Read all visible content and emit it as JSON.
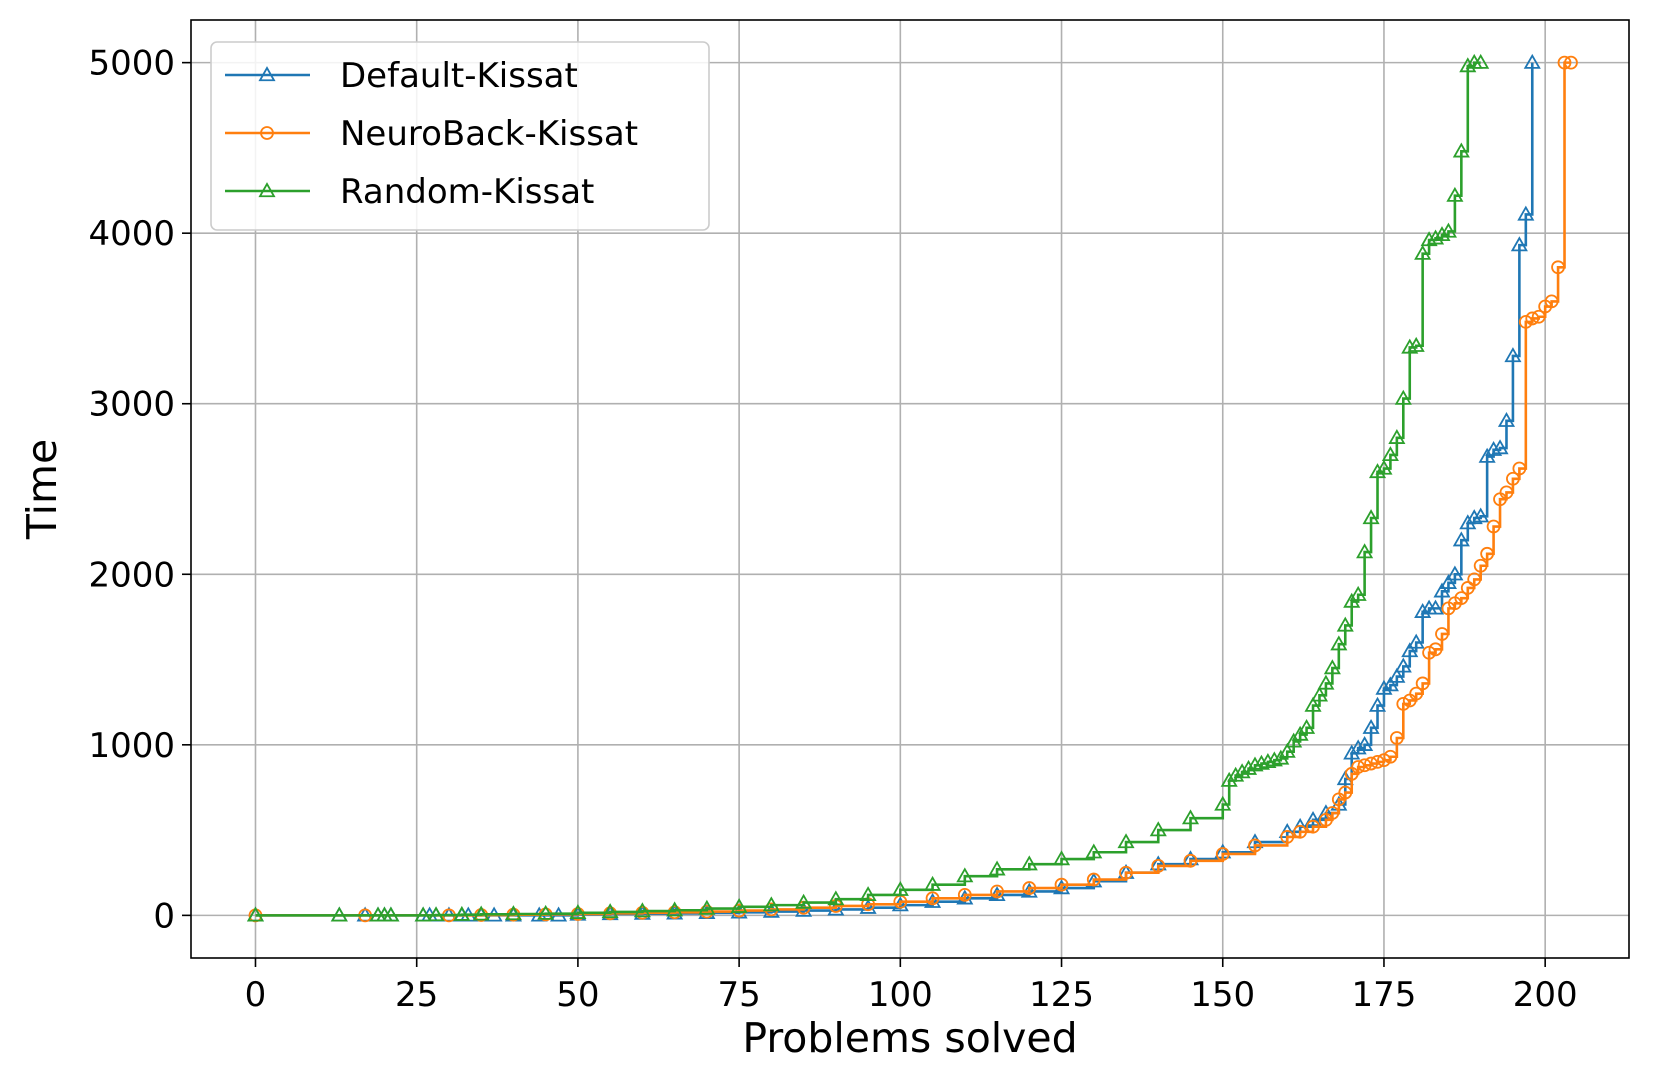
{
  "chart_data": {
    "type": "line",
    "xlabel": "Problems solved",
    "ylabel": "Time",
    "xlim": [
      -10,
      213
    ],
    "ylim": [
      -250,
      5250
    ],
    "xticks": [
      0,
      25,
      50,
      75,
      100,
      125,
      150,
      175,
      200
    ],
    "yticks": [
      0,
      1000,
      2000,
      3000,
      4000,
      5000
    ],
    "grid": true,
    "legend_position": "top-left",
    "series": [
      {
        "name": "Default-Kissat",
        "color": "#1f77b4",
        "marker": "triangle",
        "x": [
          0,
          13,
          17,
          19,
          20,
          21,
          26,
          27,
          28,
          30,
          32,
          33,
          35,
          37,
          40,
          44,
          47,
          50,
          55,
          60,
          65,
          70,
          75,
          80,
          85,
          90,
          95,
          100,
          105,
          110,
          115,
          120,
          125,
          130,
          135,
          140,
          145,
          150,
          155,
          160,
          162,
          164,
          166,
          168,
          169,
          170,
          171,
          172,
          173,
          174,
          175,
          176,
          177,
          178,
          179,
          180,
          181,
          182,
          183,
          184,
          185,
          186,
          187,
          188,
          189,
          190,
          191,
          192,
          193,
          194,
          195,
          196,
          197,
          198
        ],
        "y": [
          0,
          0,
          0,
          0,
          0,
          0,
          0,
          0,
          0,
          0,
          0,
          0,
          0,
          0,
          0,
          0,
          0,
          5,
          8,
          10,
          12,
          15,
          18,
          22,
          28,
          35,
          45,
          60,
          80,
          100,
          120,
          140,
          160,
          200,
          250,
          300,
          330,
          370,
          430,
          490,
          520,
          560,
          600,
          650,
          800,
          950,
          980,
          1000,
          1100,
          1230,
          1330,
          1350,
          1400,
          1460,
          1550,
          1600,
          1780,
          1800,
          1800,
          1900,
          1950,
          2000,
          2200,
          2300,
          2330,
          2340,
          2690,
          2730,
          2740,
          2900,
          3280,
          3930,
          4110,
          5000
        ]
      },
      {
        "name": "NeuroBack-Kissat",
        "color": "#ff7f0e",
        "marker": "circle",
        "x": [
          0,
          17,
          30,
          35,
          40,
          45,
          50,
          55,
          60,
          65,
          70,
          75,
          80,
          85,
          90,
          95,
          100,
          105,
          110,
          115,
          120,
          125,
          130,
          135,
          140,
          145,
          150,
          155,
          160,
          162,
          164,
          166,
          167,
          168,
          169,
          170,
          171,
          172,
          173,
          174,
          175,
          176,
          177,
          178,
          179,
          180,
          181,
          182,
          183,
          184,
          185,
          186,
          187,
          188,
          189,
          190,
          191,
          192,
          193,
          194,
          195,
          196,
          197,
          198,
          199,
          200,
          201,
          202,
          203,
          204
        ],
        "y": [
          0,
          0,
          0,
          2,
          4,
          6,
          8,
          12,
          15,
          18,
          22,
          28,
          35,
          45,
          55,
          65,
          80,
          100,
          120,
          140,
          160,
          180,
          210,
          250,
          290,
          320,
          360,
          410,
          460,
          490,
          520,
          560,
          600,
          680,
          720,
          830,
          870,
          880,
          890,
          900,
          910,
          930,
          1040,
          1240,
          1260,
          1300,
          1360,
          1540,
          1560,
          1650,
          1800,
          1830,
          1860,
          1920,
          1970,
          2050,
          2120,
          2280,
          2440,
          2480,
          2560,
          2620,
          3480,
          3500,
          3510,
          3570,
          3600,
          3800,
          5000,
          5000
        ]
      },
      {
        "name": "Random-Kissat",
        "color": "#2ca02c",
        "marker": "triangle",
        "x": [
          0,
          13,
          19,
          20,
          21,
          26,
          28,
          32,
          35,
          40,
          45,
          50,
          55,
          60,
          65,
          70,
          75,
          80,
          85,
          90,
          95,
          100,
          105,
          110,
          115,
          120,
          125,
          130,
          135,
          140,
          145,
          150,
          151,
          152,
          153,
          154,
          155,
          156,
          157,
          158,
          159,
          160,
          161,
          162,
          163,
          164,
          165,
          166,
          167,
          168,
          169,
          170,
          171,
          172,
          173,
          174,
          175,
          176,
          177,
          178,
          179,
          180,
          181,
          182,
          183,
          184,
          185,
          186,
          187,
          188,
          189,
          190
        ],
        "y": [
          0,
          0,
          0,
          0,
          0,
          0,
          2,
          4,
          6,
          8,
          10,
          15,
          20,
          25,
          30,
          40,
          50,
          60,
          75,
          95,
          120,
          150,
          180,
          230,
          270,
          300,
          330,
          370,
          430,
          500,
          570,
          650,
          790,
          820,
          840,
          860,
          880,
          890,
          900,
          910,
          920,
          960,
          1020,
          1060,
          1100,
          1230,
          1290,
          1360,
          1450,
          1590,
          1700,
          1840,
          1880,
          2130,
          2330,
          2600,
          2620,
          2700,
          2800,
          3030,
          3330,
          3340,
          3880,
          3960,
          3970,
          3990,
          4010,
          4220,
          4480,
          4980,
          5000,
          5000
        ]
      }
    ]
  }
}
